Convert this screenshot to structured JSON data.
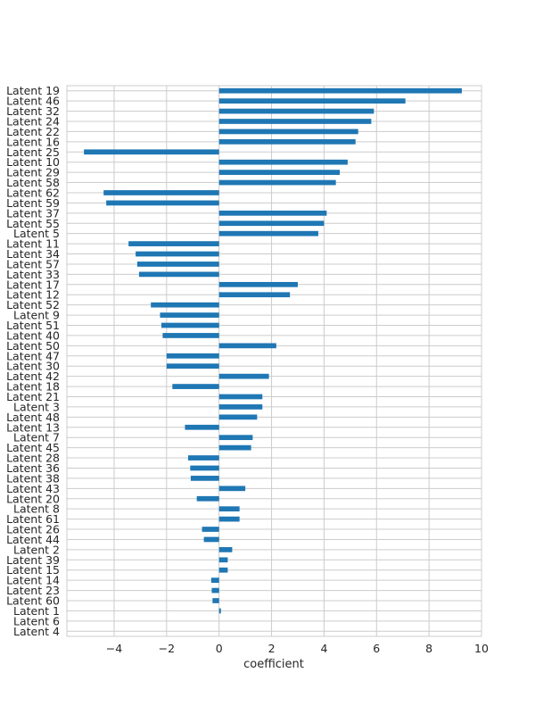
{
  "chart_data": {
    "type": "bar",
    "orientation": "horizontal",
    "title": "",
    "xlabel": "coefficient",
    "ylabel": "",
    "xlim": [
      -5.8,
      10
    ],
    "xticks": [
      -4,
      -2,
      0,
      2,
      4,
      6,
      8,
      10
    ],
    "xtick_labels": [
      "−4",
      "−2",
      "0",
      "2",
      "4",
      "6",
      "8",
      "10"
    ],
    "grid": true,
    "bar_color": "#1f77b4",
    "categories": [
      "Latent 19",
      "Latent 46",
      "Latent 32",
      "Latent 24",
      "Latent 22",
      "Latent 16",
      "Latent 25",
      "Latent 10",
      "Latent 29",
      "Latent 58",
      "Latent 62",
      "Latent 59",
      "Latent 37",
      "Latent 55",
      "Latent 5",
      "Latent 11",
      "Latent 34",
      "Latent 57",
      "Latent 33",
      "Latent 17",
      "Latent 12",
      "Latent 52",
      "Latent 9",
      "Latent 51",
      "Latent 40",
      "Latent 50",
      "Latent 47",
      "Latent 30",
      "Latent 42",
      "Latent 18",
      "Latent 21",
      "Latent 3",
      "Latent 48",
      "Latent 13",
      "Latent 7",
      "Latent 45",
      "Latent 28",
      "Latent 36",
      "Latent 38",
      "Latent 43",
      "Latent 20",
      "Latent 8",
      "Latent 61",
      "Latent 26",
      "Latent 44",
      "Latent 2",
      "Latent 39",
      "Latent 15",
      "Latent 14",
      "Latent 23",
      "Latent 60",
      "Latent 1",
      "Latent 6",
      "Latent 4"
    ],
    "values": [
      9.25,
      7.1,
      5.9,
      5.8,
      5.3,
      5.2,
      -5.15,
      4.9,
      4.6,
      4.45,
      -4.4,
      -4.3,
      4.1,
      4.0,
      3.78,
      -3.45,
      -3.18,
      -3.12,
      -3.05,
      3.0,
      2.7,
      -2.6,
      -2.25,
      -2.2,
      -2.15,
      2.18,
      -2.0,
      -2.0,
      1.9,
      -1.78,
      1.65,
      1.65,
      1.45,
      -1.3,
      1.28,
      1.22,
      -1.18,
      -1.1,
      -1.08,
      1.0,
      -0.85,
      0.78,
      0.78,
      -0.65,
      -0.58,
      0.5,
      0.33,
      0.33,
      -0.3,
      -0.28,
      -0.25,
      0.07,
      0.0,
      0.0
    ]
  }
}
